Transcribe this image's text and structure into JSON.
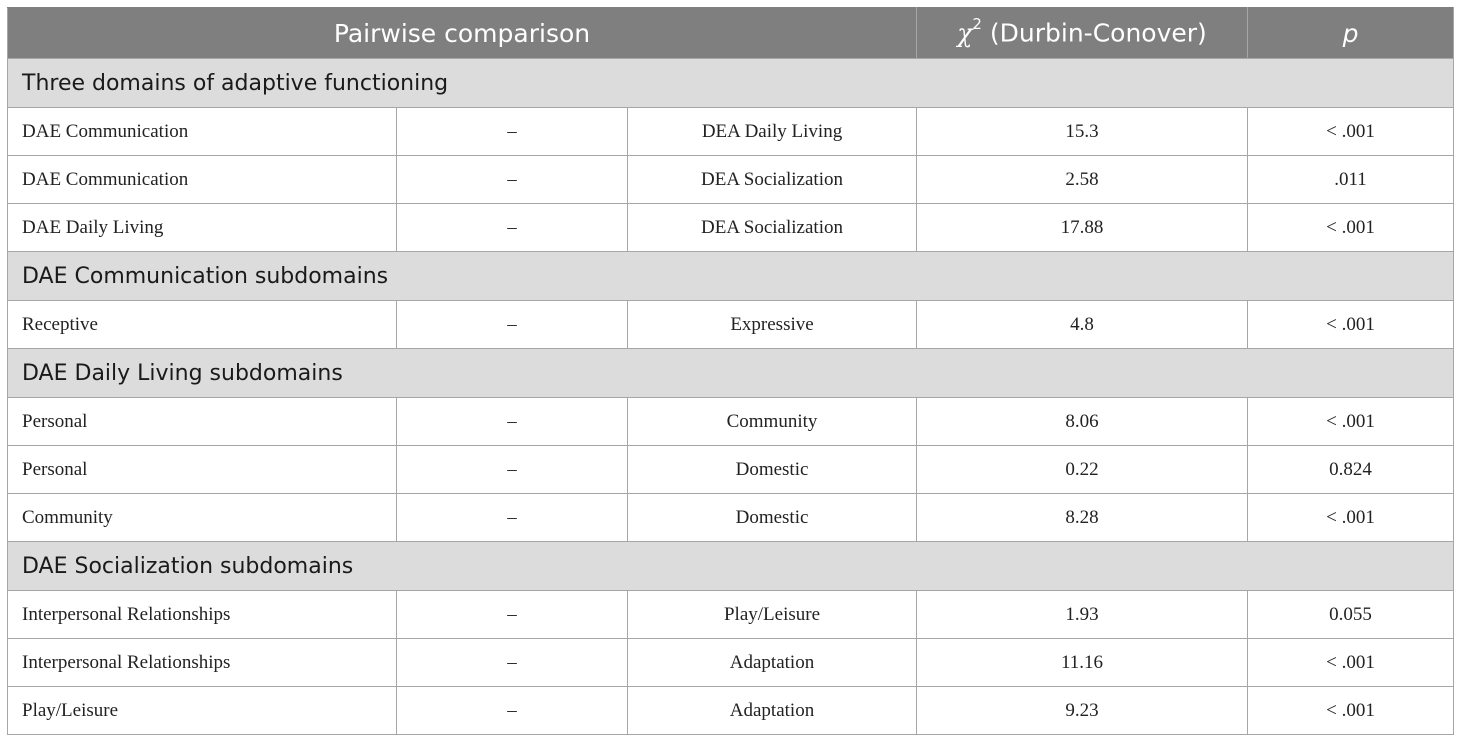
{
  "header": {
    "pairwise": "Pairwise comparison",
    "chi_symbol": "χ",
    "chi_sup": "2",
    "chi_label": " (Durbin-Conover)",
    "p": "p"
  },
  "sections": [
    {
      "title": "Three domains of adaptive functioning",
      "rows": [
        {
          "a": "DAE Communication",
          "dash": "–",
          "b": "DEA Daily Living",
          "chi": "15.3",
          "p": "< .001"
        },
        {
          "a": "DAE Communication",
          "dash": "–",
          "b": "DEA Socialization",
          "chi": "2.58",
          "p": ".011"
        },
        {
          "a": "DAE Daily Living",
          "dash": "–",
          "b": "DEA Socialization",
          "chi": "17.88",
          "p": "< .001"
        }
      ]
    },
    {
      "title": "DAE Communication subdomains",
      "rows": [
        {
          "a": "Receptive",
          "dash": "–",
          "b": "Expressive",
          "chi": "4.8",
          "p": "< .001"
        }
      ]
    },
    {
      "title": "DAE Daily Living subdomains",
      "rows": [
        {
          "a": "Personal",
          "dash": "–",
          "b": "Community",
          "chi": "8.06",
          "p": "< .001"
        },
        {
          "a": "Personal",
          "dash": "–",
          "b": "Domestic",
          "chi": "0.22",
          "p": "0.824"
        },
        {
          "a": "Community",
          "dash": "–",
          "b": "Domestic",
          "chi": "8.28",
          "p": "< .001"
        }
      ]
    },
    {
      "title": "DAE Socialization subdomains",
      "rows": [
        {
          "a": "Interpersonal Relationships",
          "dash": "–",
          "b": "Play/Leisure",
          "chi": "1.93",
          "p": "0.055"
        },
        {
          "a": "Interpersonal Relationships",
          "dash": "–",
          "b": "Adaptation",
          "chi": "11.16",
          "p": "< .001"
        },
        {
          "a": "Play/Leisure",
          "dash": "–",
          "b": "Adaptation",
          "chi": "9.23",
          "p": "< .001"
        }
      ]
    }
  ],
  "colors": {
    "header_bg": "#7f7f7f",
    "section_bg": "#dcdcdc",
    "border": "#a6a6a6"
  }
}
